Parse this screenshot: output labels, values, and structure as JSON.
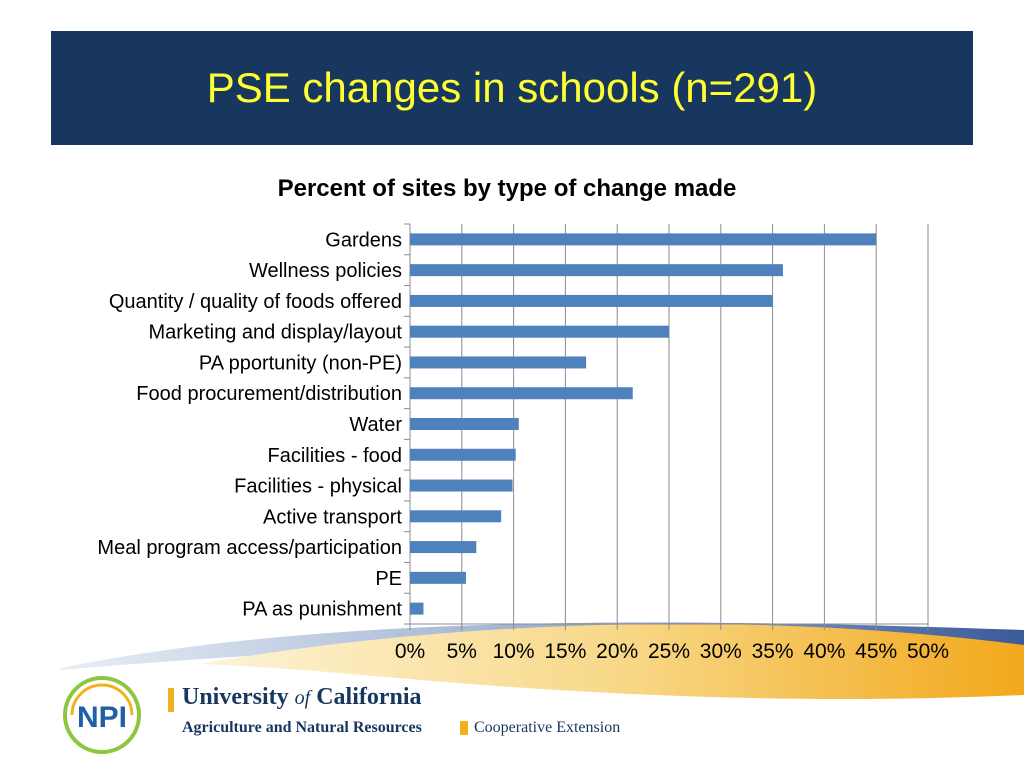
{
  "slide": {
    "title": "PSE changes in schools (n=291)"
  },
  "chart_data": {
    "type": "bar",
    "orientation": "horizontal",
    "title": "Percent of sites by type of change made",
    "xlabel": "",
    "ylabel": "",
    "xlim": [
      0,
      50
    ],
    "x_ticks": [
      "0%",
      "5%",
      "10%",
      "15%",
      "20%",
      "25%",
      "30%",
      "35%",
      "40%",
      "45%",
      "50%"
    ],
    "grid": true,
    "bar_color": "#4f81bd",
    "categories": [
      "Gardens",
      "Wellness policies",
      "Quantity / quality of foods offered",
      "Marketing and display/layout",
      "PA pportunity (non-PE)",
      "Food procurement/distribution",
      "Water",
      "Facilities - food",
      "Facilities - physical",
      "Active transport",
      "Meal program access/participation",
      "PE",
      "PA as punishment"
    ],
    "values": [
      45,
      36,
      35,
      25,
      17,
      21.5,
      10.5,
      10.2,
      9.9,
      8.8,
      6.4,
      5.4,
      1.3
    ]
  },
  "footer": {
    "org_name_part1": "University ",
    "org_name_of": "of",
    "org_name_part2": " California",
    "division": "Agriculture and Natural Resources",
    "extension": "Cooperative Extension",
    "logo_letters": "NPI",
    "colors": {
      "navy": "#17375e",
      "gold": "#f2b21c",
      "green": "#8dc63f",
      "blue": "#1f5fa8"
    }
  }
}
